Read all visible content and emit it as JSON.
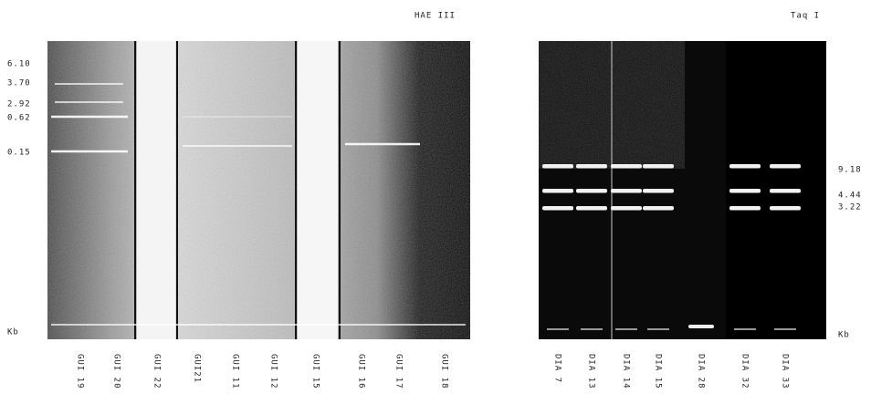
{
  "left_panel": {
    "title": "HAE III",
    "size_labels": [
      "6.10",
      "3.70",
      "2.92",
      "0.62",
      "0.15",
      "Kb"
    ],
    "lanes": [
      "GUI 19",
      "GUI 20",
      "GUI 22",
      "GUI21",
      "GUI 11",
      "GUI 12",
      "GUI 15",
      "GUI 16",
      "GUI 17",
      "GUI 18"
    ]
  },
  "right_panel": {
    "title": "Taq I",
    "size_labels": [
      "9.18",
      "4.44",
      "3.22",
      "Kb"
    ],
    "lanes": [
      "DIA 7",
      "DIA 13",
      "DIA 14",
      "DIA 15",
      "DIA 28",
      "DIA 32",
      "DIA 33"
    ]
  }
}
